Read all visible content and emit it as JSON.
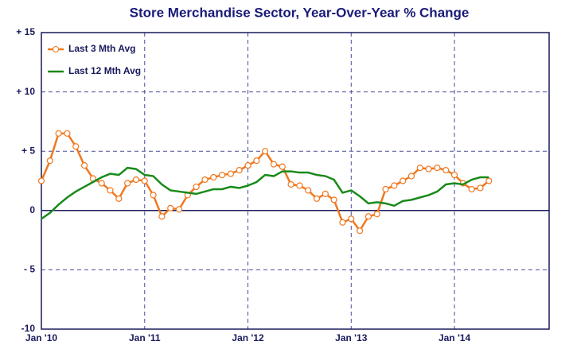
{
  "chart_data": {
    "type": "line",
    "title": "Store Merchandise Sector, Year-Over-Year % Change",
    "x": [
      0,
      1,
      2,
      3,
      4,
      5,
      6,
      7,
      8,
      9,
      10,
      11,
      12,
      13,
      14,
      15,
      16,
      17,
      18,
      19,
      20,
      21,
      22,
      23,
      24,
      25,
      26,
      27,
      28,
      29,
      30,
      31,
      32,
      33,
      34,
      35,
      36,
      37,
      38,
      39,
      40,
      41,
      42,
      43,
      44,
      45,
      46,
      47,
      48,
      49,
      50,
      51,
      52
    ],
    "xlim": [
      0,
      59
    ],
    "xticks": [
      {
        "value": 0,
        "label": "Jan '10"
      },
      {
        "value": 12,
        "label": "Jan '11"
      },
      {
        "value": 24,
        "label": "Jan '12"
      },
      {
        "value": 36,
        "label": "Jan '13"
      },
      {
        "value": 48,
        "label": "Jan '14"
      }
    ],
    "ylim": [
      -10,
      15
    ],
    "yticks": [
      {
        "value": -10,
        "label": "-10"
      },
      {
        "value": -5,
        "label": "- 5"
      },
      0,
      {
        "value": 5,
        "label": "+ 5"
      },
      {
        "value": 10,
        "label": "+ 10"
      },
      {
        "value": 15,
        "label": "+ 15"
      }
    ],
    "grid": true,
    "series": [
      {
        "name": "Last 3 Mth Avg",
        "color": "#f07820",
        "marker": "circle",
        "values": [
          2.5,
          4.2,
          6.5,
          6.5,
          5.4,
          3.8,
          2.7,
          2.3,
          1.7,
          1.0,
          2.3,
          2.6,
          2.5,
          1.3,
          -0.5,
          0.2,
          0.1,
          1.3,
          2.0,
          2.6,
          2.8,
          3.0,
          3.1,
          3.4,
          3.8,
          4.2,
          5.0,
          3.9,
          3.7,
          2.2,
          2.1,
          1.7,
          1.0,
          1.4,
          0.9,
          -1.0,
          -0.7,
          -1.7,
          -0.5,
          -0.3,
          1.8,
          2.1,
          2.5,
          2.9,
          3.6,
          3.5,
          3.6,
          3.4,
          3.0,
          2.3,
          1.8,
          1.9,
          2.5
        ]
      },
      {
        "name": "Last 12 Mth Avg",
        "color": "#1a8a1a",
        "values": [
          -0.7,
          -0.2,
          0.5,
          1.1,
          1.6,
          2.0,
          2.4,
          2.8,
          3.1,
          3.0,
          3.6,
          3.5,
          3.0,
          2.9,
          2.2,
          1.7,
          1.6,
          1.5,
          1.4,
          1.6,
          1.8,
          1.8,
          2.0,
          1.9,
          2.1,
          2.4,
          3.0,
          2.9,
          3.3,
          3.3,
          3.2,
          3.2,
          3.0,
          2.9,
          2.6,
          1.5,
          1.7,
          1.2,
          0.6,
          0.7,
          0.6,
          0.4,
          0.8,
          0.9,
          1.1,
          1.3,
          1.6,
          2.2,
          2.3,
          2.2,
          2.6,
          2.8,
          2.8
        ]
      }
    ]
  }
}
